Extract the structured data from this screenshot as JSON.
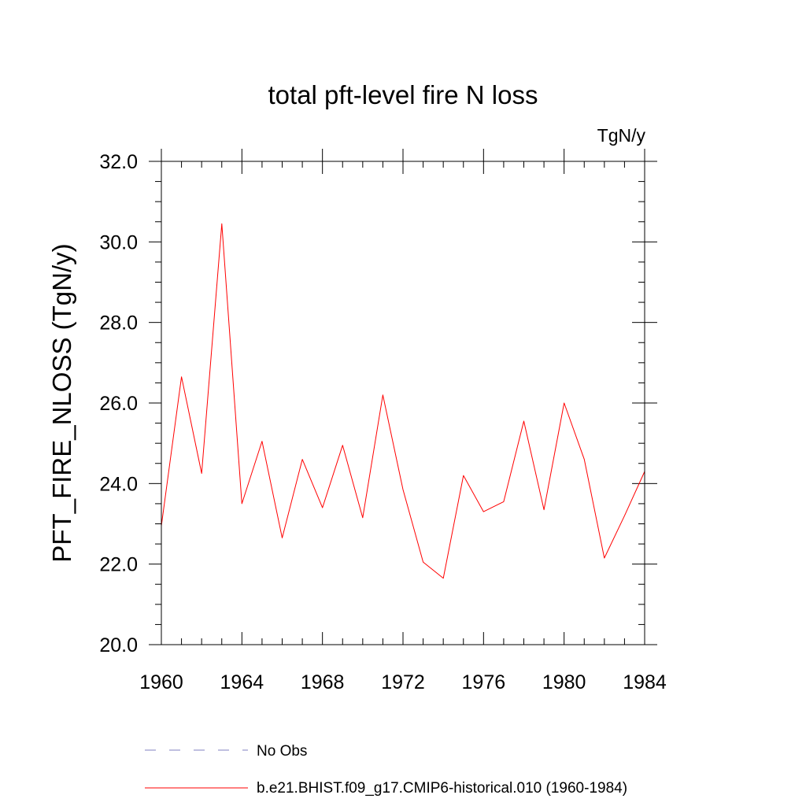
{
  "chart_data": {
    "type": "line",
    "title": "total pft-level fire N loss",
    "units_label": "TgN/y",
    "ylabel": "PFT_FIRE_NLOSS  (TgN/y)",
    "xlabel": "",
    "xlim": [
      1960,
      1984
    ],
    "ylim": [
      20.0,
      32.0
    ],
    "x_ticks": [
      1960,
      1964,
      1968,
      1972,
      1976,
      1980,
      1984
    ],
    "x_tick_labels": [
      "1960",
      "1964",
      "1968",
      "1972",
      "1976",
      "1980",
      "1984"
    ],
    "y_ticks": [
      20.0,
      22.0,
      24.0,
      26.0,
      28.0,
      30.0,
      32.0
    ],
    "y_tick_labels": [
      "20.0",
      "22.0",
      "24.0",
      "26.0",
      "28.0",
      "30.0",
      "32.0"
    ],
    "grid": false,
    "legend_position": "bottom",
    "series": [
      {
        "name": "b.e21.BHIST.f09_g17.CMIP6-historical.010 (1960-1984)",
        "color": "#ff0000",
        "style": "solid",
        "x": [
          1960,
          1961,
          1962,
          1963,
          1964,
          1965,
          1966,
          1967,
          1968,
          1969,
          1970,
          1971,
          1972,
          1973,
          1974,
          1975,
          1976,
          1977,
          1978,
          1979,
          1980,
          1981,
          1982,
          1983,
          1984
        ],
        "y": [
          22.95,
          26.65,
          24.25,
          30.45,
          23.5,
          25.05,
          22.65,
          24.6,
          23.4,
          24.95,
          23.15,
          26.2,
          23.85,
          22.05,
          21.65,
          24.2,
          23.3,
          23.55,
          25.55,
          23.35,
          26.0,
          24.6,
          22.15,
          23.2,
          24.3
        ]
      }
    ],
    "legend": [
      {
        "label": "No Obs",
        "color": "#8080c0",
        "style": "dashed"
      },
      {
        "label": "b.e21.BHIST.f09_g17.CMIP6-historical.010 (1960-1984)",
        "color": "#ff0000",
        "style": "solid"
      }
    ]
  }
}
